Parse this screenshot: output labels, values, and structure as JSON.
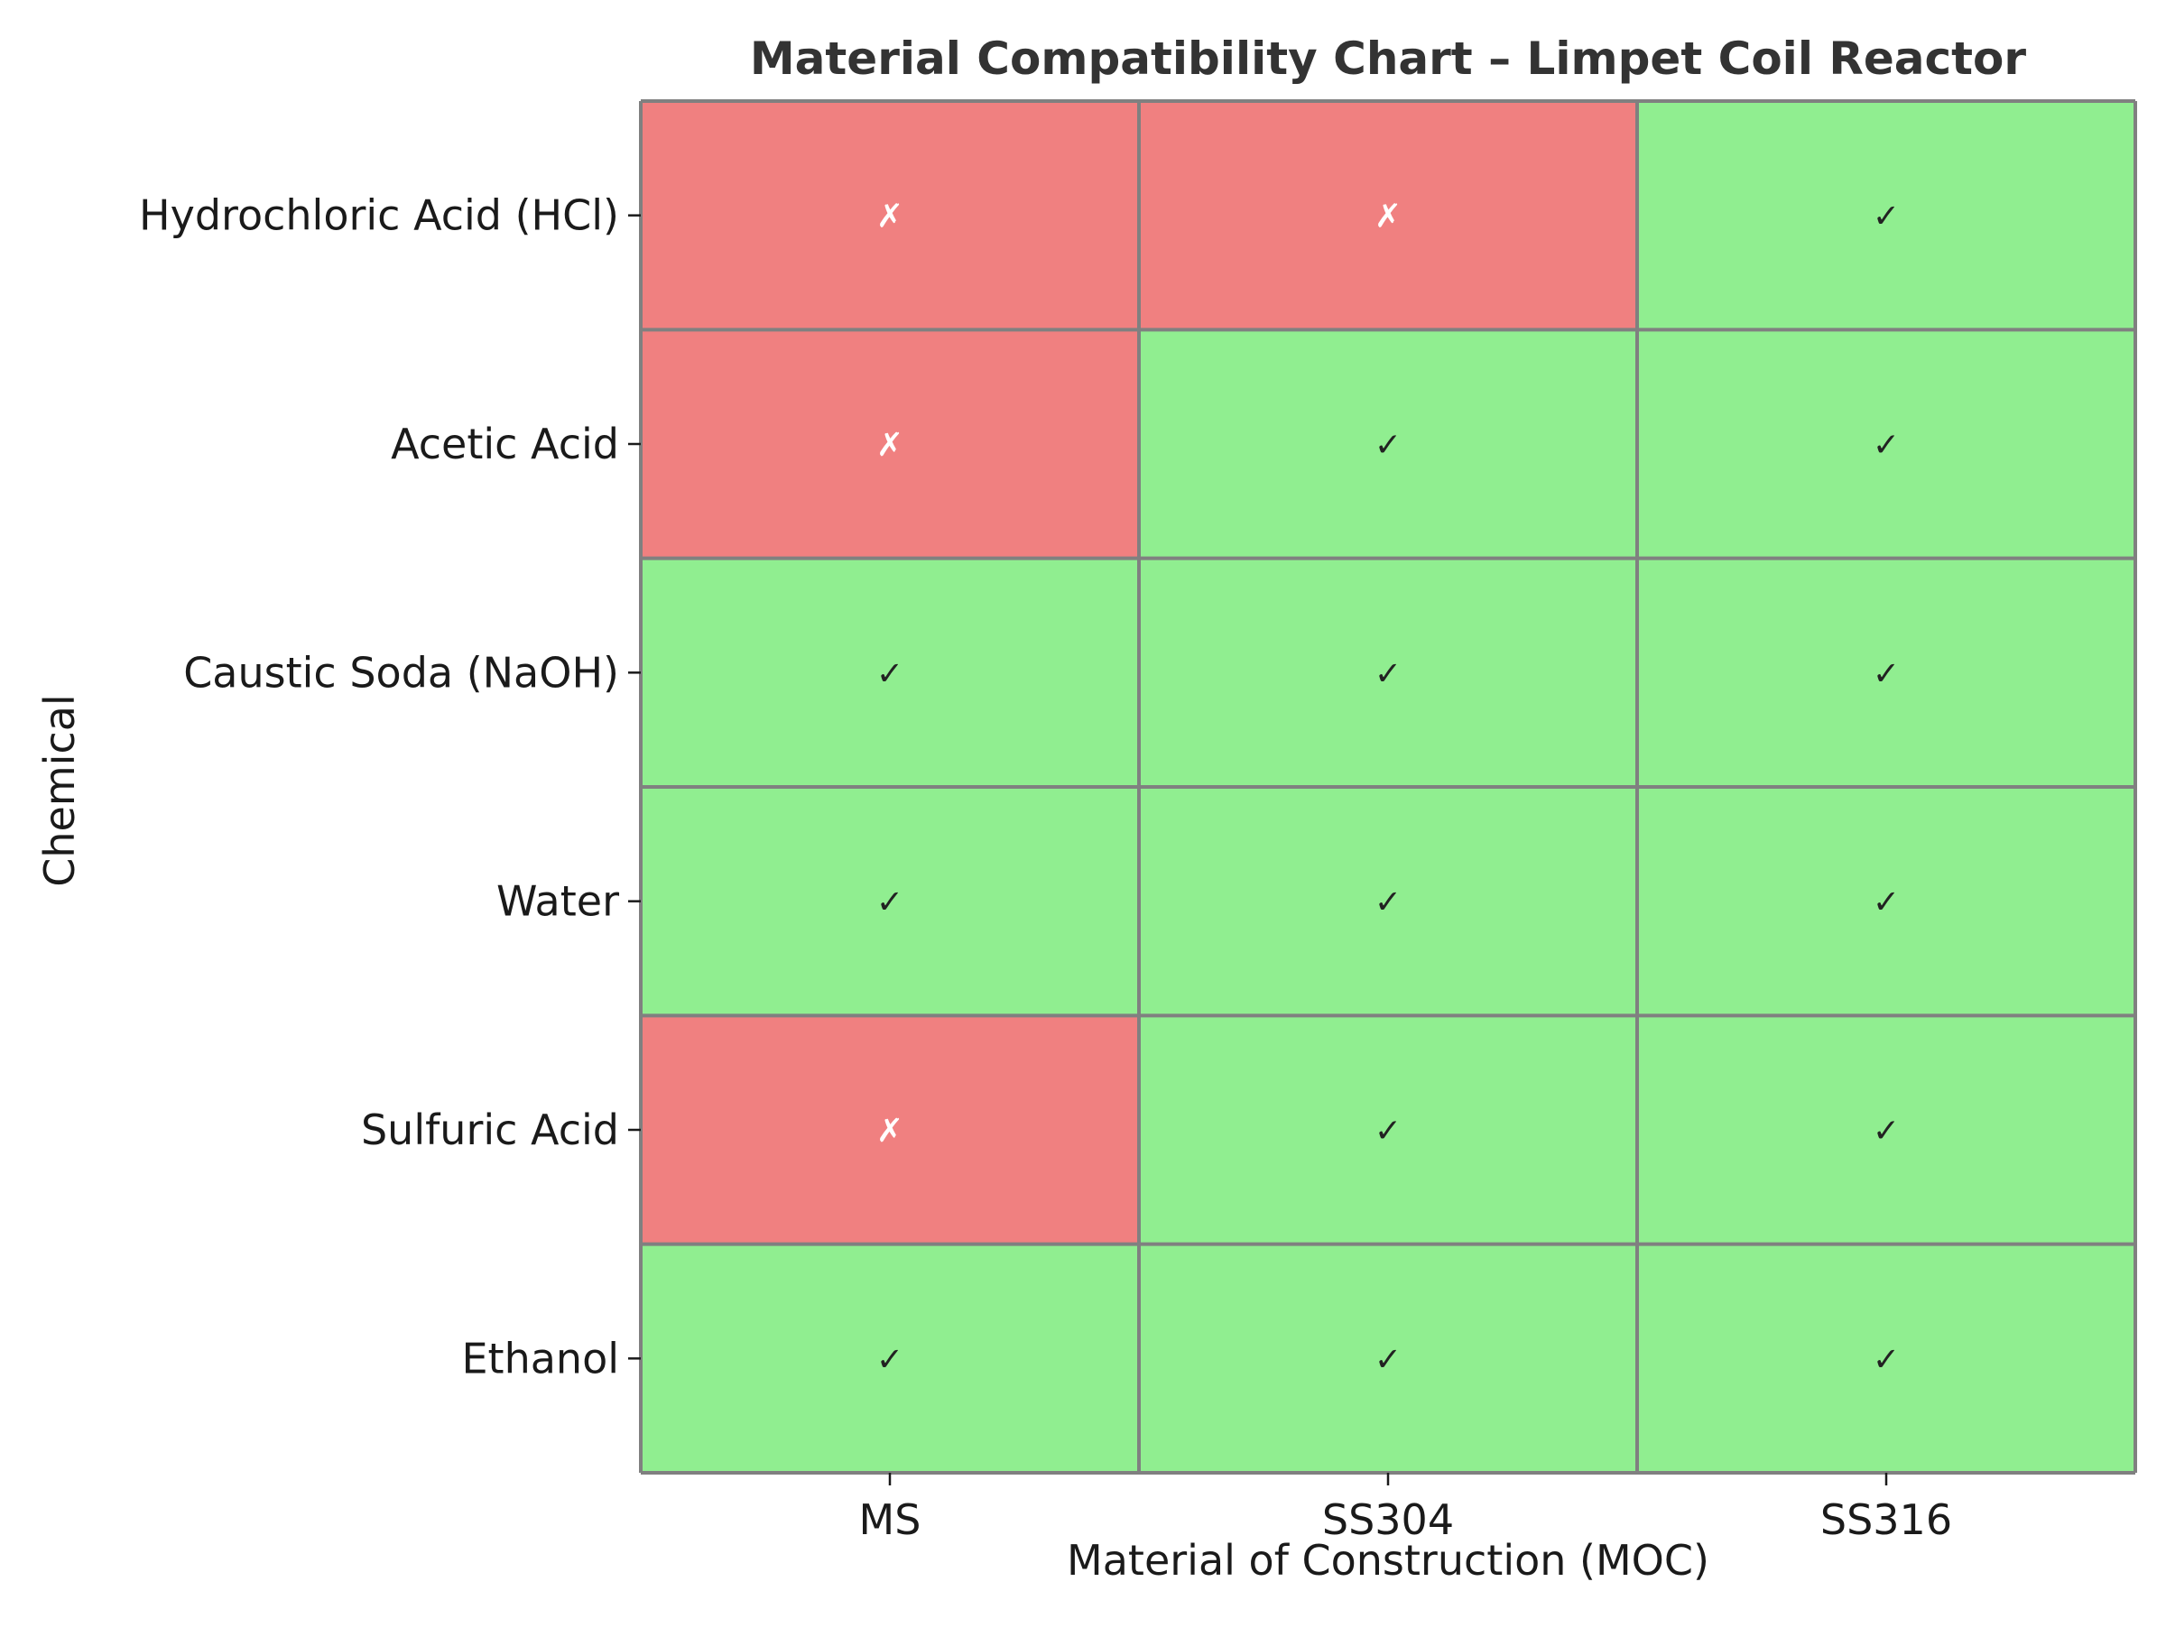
{
  "chart_data": {
    "type": "heatmap",
    "title": "Material Compatibility Chart – Limpet Coil Reactor",
    "xlabel": "Material of Construction (MOC)",
    "ylabel": "Chemical",
    "columns": [
      "MS",
      "SS304",
      "SS316"
    ],
    "rows": [
      "Hydrochloric Acid (HCl)",
      "Acetic Acid",
      "Caustic Soda (NaOH)",
      "Water",
      "Sulfuric Acid",
      "Ethanol"
    ],
    "values": [
      [
        0,
        0,
        1
      ],
      [
        0,
        1,
        1
      ],
      [
        1,
        1,
        1
      ],
      [
        1,
        1,
        1
      ],
      [
        0,
        1,
        1
      ],
      [
        1,
        1,
        1
      ]
    ],
    "symbols": {
      "compatible": "✓",
      "incompatible": "✗"
    },
    "colors": {
      "compatible": "#90ee90",
      "incompatible": "#f08080",
      "compatible_text": "#222222",
      "incompatible_text": "#ffffff",
      "grid": "#808080",
      "text": "#1a1a1a",
      "title": "#333333"
    }
  }
}
